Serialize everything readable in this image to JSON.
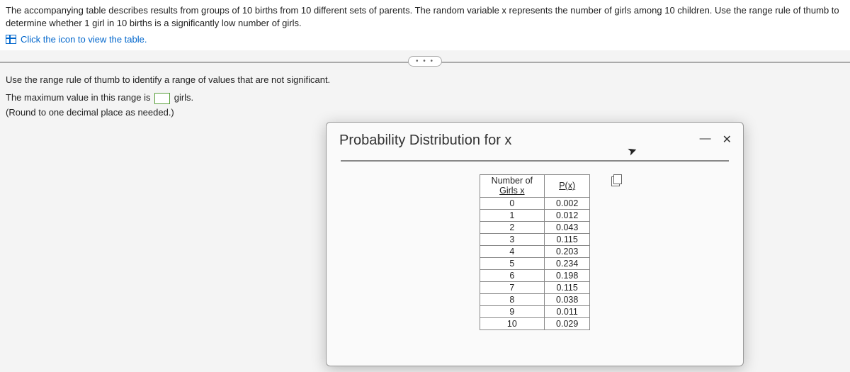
{
  "problem": {
    "text": "The accompanying table describes results from groups of 10 births from 10 different sets of parents. The random variable x represents the number of girls among 10 children. Use the range rule of thumb to determine whether 1 girl in 10 births is a significantly low number of girls.",
    "view_table_link": "Click the icon to view the table."
  },
  "expand_dots": "• • •",
  "question": {
    "prompt": "Use the range rule of thumb to identify a range of values that are not significant.",
    "line1_prefix": "The maximum value in this range is ",
    "line1_suffix": " girls.",
    "hint": "(Round to one decimal place as needed.)"
  },
  "dialog": {
    "title": "Probability Distribution for x",
    "minimize": "—",
    "close": "✕",
    "columns": {
      "col1_line1": "Number of",
      "col1_line2": "Girls x",
      "col2": "P(x)"
    },
    "rows": [
      {
        "x": "0",
        "p": "0.002"
      },
      {
        "x": "1",
        "p": "0.012"
      },
      {
        "x": "2",
        "p": "0.043"
      },
      {
        "x": "3",
        "p": "0.115"
      },
      {
        "x": "4",
        "p": "0.203"
      },
      {
        "x": "5",
        "p": "0.234"
      },
      {
        "x": "6",
        "p": "0.198"
      },
      {
        "x": "7",
        "p": "0.115"
      },
      {
        "x": "8",
        "p": "0.038"
      },
      {
        "x": "9",
        "p": "0.011"
      },
      {
        "x": "10",
        "p": "0.029"
      }
    ]
  },
  "style": {
    "link_color": "#0066cc",
    "input_border": "#5aa03c",
    "table_border": "#888888",
    "dialog_bg": "#fafafa"
  }
}
